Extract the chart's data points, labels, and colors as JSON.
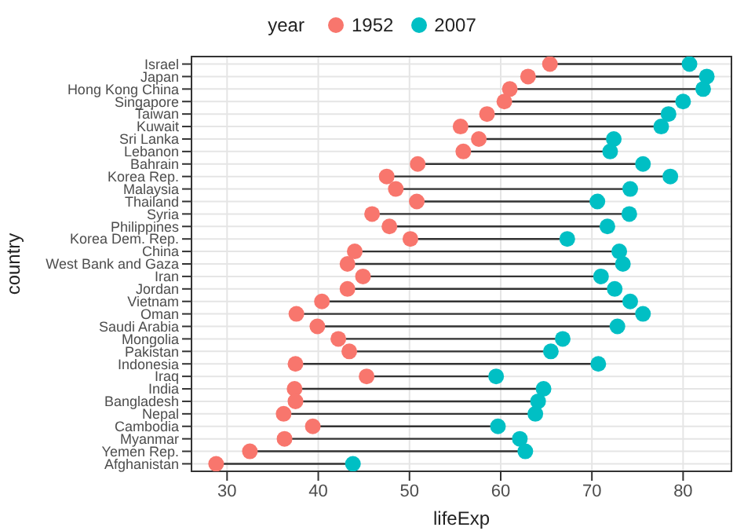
{
  "chart_data": {
    "type": "scatter",
    "xlabel": "lifeExp",
    "ylabel": "country",
    "legend_title": "year",
    "legend": "top",
    "grid": true,
    "marker": "circle",
    "orientation": "horizontal",
    "categories": [
      "Israel",
      "Japan",
      "Hong Kong China",
      "Singapore",
      "Taiwan",
      "Kuwait",
      "Sri Lanka",
      "Lebanon",
      "Bahrain",
      "Korea Rep.",
      "Malaysia",
      "Thailand",
      "Syria",
      "Philippines",
      "Korea Dem. Rep.",
      "China",
      "West Bank and Gaza",
      "Iran",
      "Jordan",
      "Vietnam",
      "Oman",
      "Saudi Arabia",
      "Mongolia",
      "Pakistan",
      "Indonesia",
      "Iraq",
      "India",
      "Bangladesh",
      "Nepal",
      "Cambodia",
      "Myanmar",
      "Yemen Rep.",
      "Afghanistan"
    ],
    "series": [
      {
        "name": "1952",
        "color": "#f8766d",
        "values": [
          65.4,
          63.0,
          61.0,
          60.4,
          58.5,
          55.6,
          57.6,
          55.9,
          50.9,
          47.5,
          48.5,
          50.8,
          45.9,
          47.8,
          50.1,
          44.0,
          43.2,
          44.9,
          43.2,
          40.4,
          37.6,
          39.9,
          42.2,
          43.4,
          37.5,
          45.3,
          37.4,
          37.5,
          36.2,
          39.4,
          36.3,
          32.5,
          28.8
        ]
      },
      {
        "name": "2007",
        "color": "#00bfc4",
        "values": [
          80.7,
          82.6,
          82.2,
          80.0,
          78.4,
          77.6,
          72.4,
          72.0,
          75.6,
          78.6,
          74.2,
          70.6,
          74.1,
          71.7,
          67.3,
          73.0,
          73.4,
          71.0,
          72.5,
          74.2,
          75.6,
          72.8,
          66.8,
          65.5,
          70.7,
          59.5,
          64.7,
          64.1,
          63.8,
          59.7,
          62.1,
          62.7,
          43.8
        ]
      }
    ],
    "xlim": [
      26.1,
      85.3
    ],
    "xticks": [
      30,
      40,
      50,
      60,
      70,
      80
    ]
  }
}
